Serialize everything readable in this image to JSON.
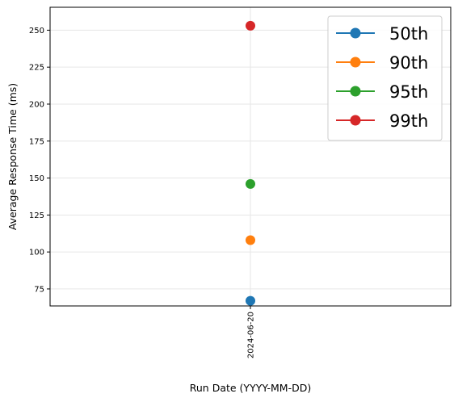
{
  "chart_data": {
    "type": "line",
    "x": [
      "2024-06-20"
    ],
    "xlabel": "Run Date (YYYY-MM-DD)",
    "ylabel": "Average Response Time (ms)",
    "ylim": [
      63.5,
      265.5
    ],
    "yticks": [
      75,
      100,
      125,
      150,
      175,
      200,
      225,
      250
    ],
    "grid": true,
    "legend_position": "upper-right",
    "series": [
      {
        "name": "50th",
        "values": [
          67
        ],
        "color": "#1f77b4"
      },
      {
        "name": "90th",
        "values": [
          108
        ],
        "color": "#ff7f0e"
      },
      {
        "name": "95th",
        "values": [
          146
        ],
        "color": "#2ca02c"
      },
      {
        "name": "99th",
        "values": [
          253
        ],
        "color": "#d62728"
      }
    ]
  }
}
